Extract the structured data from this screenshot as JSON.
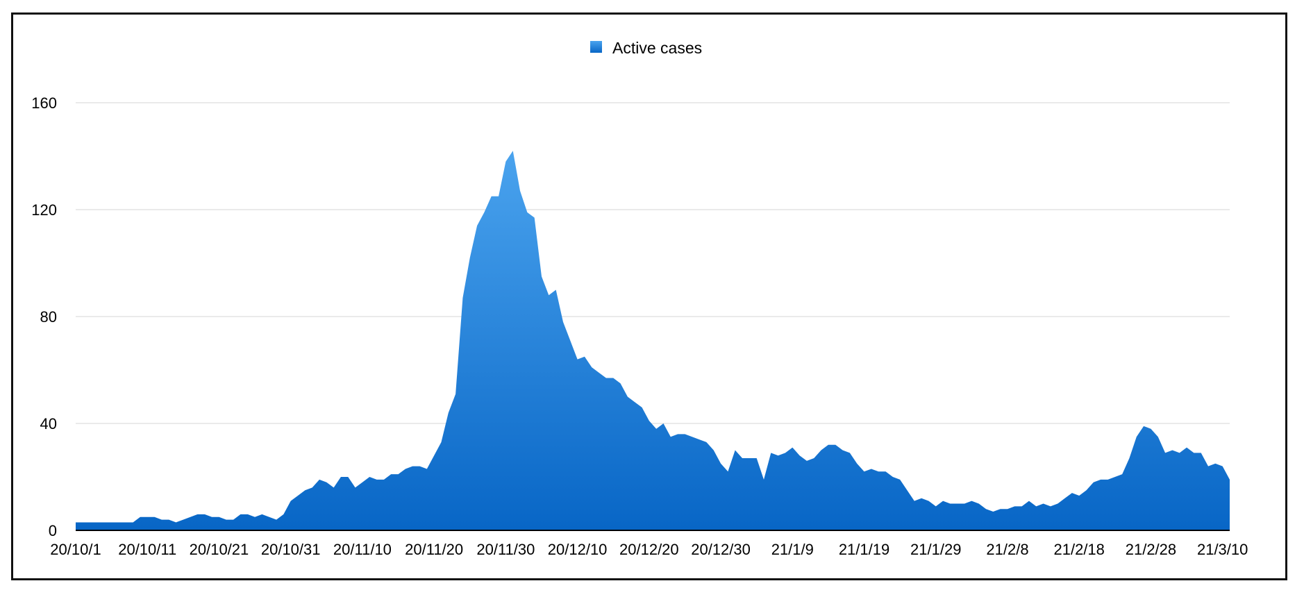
{
  "chart_data": {
    "type": "area",
    "title": "",
    "xlabel": "",
    "ylabel": "",
    "ylim": [
      0,
      160
    ],
    "yticks": [
      0,
      40,
      80,
      120,
      160
    ],
    "grid": true,
    "legend_position": "top-center",
    "x_tick_labels": [
      "20/10/1",
      "20/10/11",
      "20/10/21",
      "20/10/31",
      "20/11/10",
      "20/11/20",
      "20/11/30",
      "20/12/10",
      "20/12/20",
      "20/12/30",
      "21/1/9",
      "21/1/19",
      "21/1/29",
      "21/2/8",
      "21/2/18",
      "21/2/28",
      "21/3/10"
    ],
    "x_start": "20/10/1",
    "x_end": "21/3/10",
    "series": [
      {
        "name": "Active cases",
        "color_top": "#4aa3ee",
        "color_bottom": "#0866c6",
        "values": [
          3,
          3,
          3,
          3,
          3,
          3,
          3,
          3,
          3,
          5,
          5,
          5,
          4,
          4,
          3,
          4,
          5,
          6,
          6,
          5,
          5,
          4,
          4,
          6,
          6,
          5,
          6,
          5,
          4,
          6,
          11,
          13,
          15,
          16,
          19,
          18,
          16,
          20,
          20,
          16,
          18,
          20,
          19,
          19,
          21,
          21,
          23,
          24,
          24,
          23,
          28,
          33,
          44,
          51,
          87,
          102,
          114,
          119,
          125,
          125,
          138,
          142,
          127,
          119,
          117,
          95,
          88,
          90,
          78,
          71,
          64,
          65,
          61,
          59,
          57,
          57,
          55,
          50,
          48,
          46,
          41,
          38,
          40,
          35,
          36,
          36,
          35,
          34,
          33,
          30,
          25,
          22,
          30,
          27,
          27,
          27,
          19,
          29,
          28,
          29,
          31,
          28,
          26,
          27,
          30,
          32,
          32,
          30,
          29,
          25,
          22,
          23,
          22,
          22,
          20,
          19,
          15,
          11,
          12,
          11,
          9,
          11,
          10,
          10,
          10,
          11,
          10,
          8,
          7,
          8,
          8,
          9,
          9,
          11,
          9,
          10,
          9,
          10,
          12,
          14,
          13,
          15,
          18,
          19,
          19,
          20,
          21,
          27,
          35,
          39,
          38,
          35,
          29,
          30,
          29,
          31,
          29,
          29,
          24,
          25,
          24,
          19
        ]
      }
    ]
  }
}
